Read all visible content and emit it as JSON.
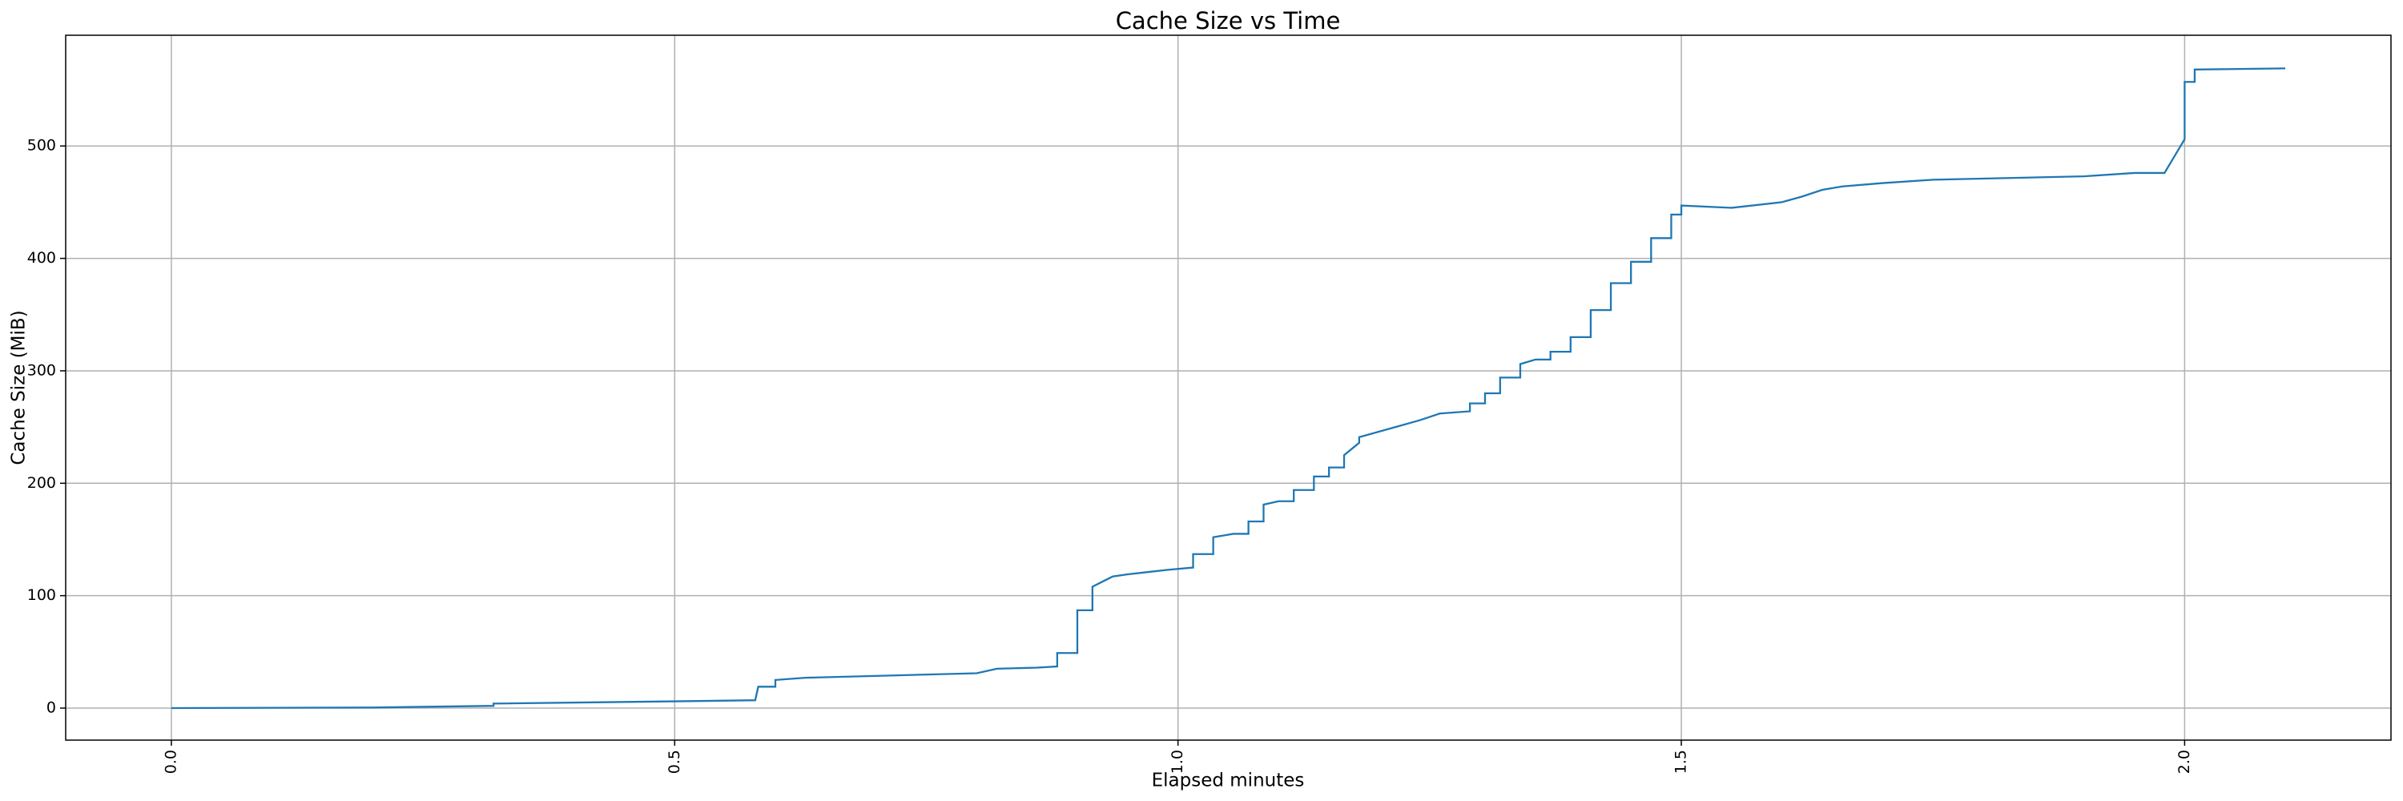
{
  "chart_data": {
    "type": "line",
    "title": "Cache Size vs Time",
    "x_label": "Elapsed minutes",
    "y_label": "Cache Size (MiB)",
    "x": [
      0,
      0.2,
      0.32,
      0.32,
      0.5,
      0.58,
      0.583,
      0.6,
      0.6,
      0.63,
      0.8,
      0.82,
      0.86,
      0.88,
      0.88,
      0.9,
      0.9,
      0.915,
      0.915,
      0.935,
      0.95,
      0.97,
      0.99,
      1.015,
      1.015,
      1.035,
      1.035,
      1.055,
      1.07,
      1.07,
      1.085,
      1.085,
      1.1,
      1.115,
      1.115,
      1.135,
      1.135,
      1.15,
      1.15,
      1.165,
      1.165,
      1.18,
      1.18,
      1.2,
      1.22,
      1.24,
      1.26,
      1.29,
      1.29,
      1.305,
      1.305,
      1.32,
      1.32,
      1.34,
      1.34,
      1.355,
      1.37,
      1.37,
      1.39,
      1.39,
      1.41,
      1.41,
      1.43,
      1.43,
      1.45,
      1.45,
      1.47,
      1.47,
      1.49,
      1.49,
      1.5,
      1.5,
      1.55,
      1.6,
      1.62,
      1.64,
      1.66,
      1.7,
      1.75,
      1.9,
      1.95,
      1.98,
      2.0,
      2.0,
      2.01,
      2.01,
      2.1
    ],
    "series": [
      {
        "name": "Cache Size",
        "color": "#1f77b4",
        "values": [
          0,
          0.5,
          2,
          4,
          6,
          7,
          19,
          19,
          25,
          27,
          31,
          35,
          36,
          37,
          49,
          49,
          87,
          87,
          108,
          117,
          119,
          121,
          123,
          125,
          137,
          137,
          152,
          155,
          155,
          166,
          166,
          181,
          184,
          184,
          194,
          194,
          206,
          206,
          214,
          214,
          225,
          236,
          241,
          246,
          251,
          256,
          262,
          264,
          271,
          271,
          280,
          280,
          294,
          294,
          306,
          310,
          310,
          317,
          317,
          330,
          330,
          354,
          354,
          378,
          378,
          397,
          397,
          418,
          418,
          439,
          439,
          447,
          445,
          450,
          455,
          461,
          464,
          467,
          470,
          473,
          476,
          476,
          506,
          557,
          557,
          568,
          569
        ]
      }
    ],
    "xlim": [
      -0.105,
      2.205
    ],
    "ylim": [
      -28.5,
      598.5
    ],
    "xticks": [
      {
        "value": 0,
        "label": "0.0"
      },
      0.5,
      {
        "value": 1,
        "label": "1.0"
      },
      1.5,
      {
        "value": 2,
        "label": "2.0"
      }
    ],
    "yticks": [
      0,
      100,
      200,
      300,
      400,
      500
    ],
    "grid": true
  }
}
